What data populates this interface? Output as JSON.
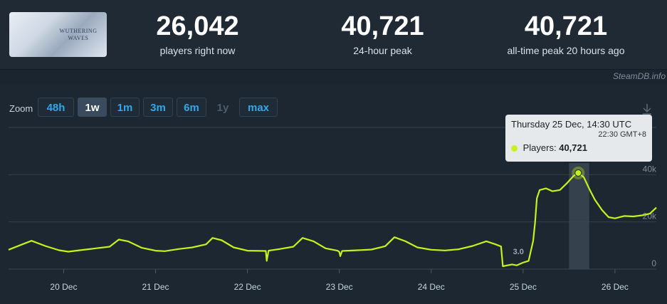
{
  "header": {
    "game_logo_text": "WUTHERING WAVES",
    "stats": [
      {
        "value": "26,042",
        "label": "players right now"
      },
      {
        "value": "40,721",
        "label": "24-hour peak"
      },
      {
        "value": "40,721",
        "label": "all-time peak 20 hours ago"
      }
    ],
    "watermark": "SteamDB.info"
  },
  "zoom": {
    "label": "Zoom",
    "buttons": [
      {
        "label": "48h",
        "state": "normal"
      },
      {
        "label": "1w",
        "state": "active"
      },
      {
        "label": "1m",
        "state": "normal"
      },
      {
        "label": "3m",
        "state": "normal"
      },
      {
        "label": "6m",
        "state": "normal"
      },
      {
        "label": "1y",
        "state": "disabled"
      },
      {
        "label": "max",
        "state": "normal"
      }
    ]
  },
  "tooltip": {
    "title": "Thursday 25 Dec, 14:30 UTC",
    "local_time": "22:30 GMT+8",
    "series_label": "Players:",
    "value": "40,721"
  },
  "colors": {
    "line": "#c5f21d",
    "background": "#1b2530",
    "grid": "#33404c",
    "accent": "#31a8ea"
  },
  "chart_data": {
    "type": "line",
    "title": "",
    "xlabel": "",
    "ylabel": "",
    "x_ticks": [
      "20 Dec",
      "21 Dec",
      "22 Dec",
      "23 Dec",
      "24 Dec",
      "25 Dec",
      "26 Dec"
    ],
    "y_ticks": [
      "0",
      "20k",
      "40k"
    ],
    "ylim": [
      0,
      60000
    ],
    "x_range_days": [
      19.4,
      26.45
    ],
    "grid": true,
    "series": [
      {
        "name": "Players",
        "points": [
          [
            19.4,
            8200
          ],
          [
            19.55,
            10500
          ],
          [
            19.65,
            12000
          ],
          [
            19.8,
            9800
          ],
          [
            19.95,
            8000
          ],
          [
            20.05,
            7400
          ],
          [
            20.2,
            8100
          ],
          [
            20.35,
            8800
          ],
          [
            20.5,
            9500
          ],
          [
            20.6,
            12500
          ],
          [
            20.7,
            11800
          ],
          [
            20.85,
            9000
          ],
          [
            21.0,
            7800
          ],
          [
            21.1,
            7600
          ],
          [
            21.25,
            8500
          ],
          [
            21.4,
            9200
          ],
          [
            21.55,
            10500
          ],
          [
            21.62,
            13200
          ],
          [
            21.72,
            12200
          ],
          [
            21.85,
            9200
          ],
          [
            22.0,
            7800
          ],
          [
            22.2,
            7700
          ],
          [
            22.21,
            3500
          ],
          [
            22.23,
            7800
          ],
          [
            22.35,
            8500
          ],
          [
            22.5,
            9500
          ],
          [
            22.6,
            13200
          ],
          [
            22.72,
            11800
          ],
          [
            22.85,
            8800
          ],
          [
            22.98,
            7800
          ],
          [
            23.0,
            7300
          ],
          [
            23.01,
            5500
          ],
          [
            23.03,
            7700
          ],
          [
            23.2,
            8000
          ],
          [
            23.35,
            8300
          ],
          [
            23.5,
            9700
          ],
          [
            23.6,
            13500
          ],
          [
            23.72,
            11800
          ],
          [
            23.85,
            9200
          ],
          [
            24.0,
            8200
          ],
          [
            24.15,
            7900
          ],
          [
            24.3,
            8400
          ],
          [
            24.45,
            9800
          ],
          [
            24.6,
            11800
          ],
          [
            24.7,
            10500
          ],
          [
            24.76,
            9600
          ],
          [
            24.78,
            1200
          ],
          [
            24.88,
            2000
          ],
          [
            24.93,
            1600
          ],
          [
            24.99,
            2600
          ],
          [
            25.01,
            2900
          ],
          [
            25.06,
            3500
          ],
          [
            25.11,
            12000
          ],
          [
            25.13,
            19500
          ],
          [
            25.15,
            30000
          ],
          [
            25.18,
            33500
          ],
          [
            25.25,
            34200
          ],
          [
            25.32,
            33000
          ],
          [
            25.4,
            33500
          ],
          [
            25.48,
            36500
          ],
          [
            25.55,
            39500
          ],
          [
            25.6,
            40721
          ],
          [
            25.66,
            39000
          ],
          [
            25.72,
            34000
          ],
          [
            25.78,
            29500
          ],
          [
            25.86,
            25000
          ],
          [
            25.93,
            22000
          ],
          [
            26.0,
            21500
          ],
          [
            26.1,
            22500
          ],
          [
            26.2,
            22300
          ],
          [
            26.3,
            22800
          ],
          [
            26.38,
            23500
          ],
          [
            26.45,
            26042
          ]
        ]
      }
    ],
    "highlight": {
      "x": 25.6,
      "y": 40721,
      "band": [
        25.5,
        25.72
      ]
    },
    "annotation": {
      "label": "3.0",
      "x": 24.98,
      "y": 7500
    }
  }
}
